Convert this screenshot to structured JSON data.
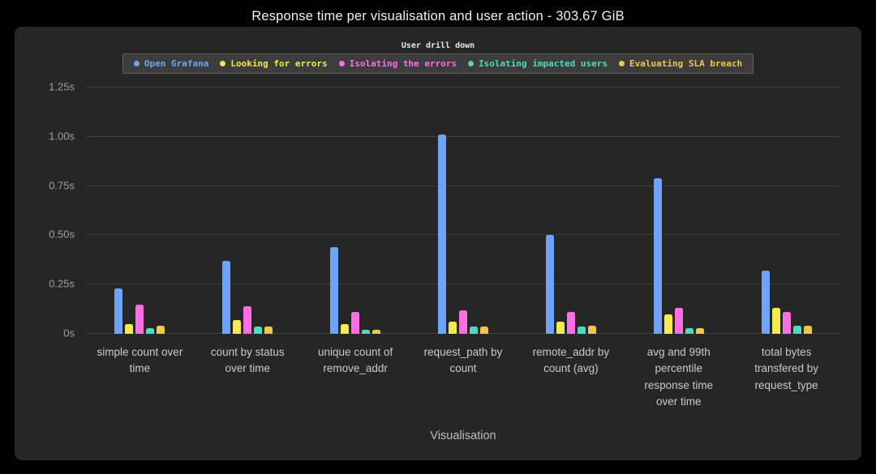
{
  "page": {
    "title": "Response time per visualisation and user action - 303.67 GiB"
  },
  "chart_data": {
    "type": "bar",
    "title": "Response time per visualisation and user action - 303.67 GiB",
    "xlabel": "Visualisation",
    "ylabel": "",
    "ylim": [
      0,
      1.25
    ],
    "grid": true,
    "legend_title": "User drill down",
    "legend_position": "top",
    "yticks": [
      {
        "label": "0s",
        "value": 0
      },
      {
        "label": "0.25s",
        "value": 0.25
      },
      {
        "label": "0.50s",
        "value": 0.5
      },
      {
        "label": "0.75s",
        "value": 0.75
      },
      {
        "label": "1.00s",
        "value": 1.0
      },
      {
        "label": "1.25s",
        "value": 1.25
      }
    ],
    "categories": [
      "simple count over time",
      "count by status over time",
      "unique count of remove_addr",
      "request_path by count",
      "remote_addr by count (avg)",
      "avg and 99th percentile response time over time",
      "total bytes transfered by request_type"
    ],
    "series": [
      {
        "name": "Open Grafana",
        "color": "#6ea3f9",
        "values": [
          0.23,
          0.37,
          0.44,
          1.01,
          0.5,
          0.79,
          0.32
        ]
      },
      {
        "name": "Looking for errors",
        "color": "#f2ea4e",
        "values": [
          0.05,
          0.07,
          0.05,
          0.06,
          0.06,
          0.1,
          0.13
        ]
      },
      {
        "name": "Isolating the errors",
        "color": "#fb6fe3",
        "values": [
          0.15,
          0.14,
          0.11,
          0.12,
          0.11,
          0.13,
          0.11
        ]
      },
      {
        "name": "Isolating impacted users",
        "color": "#4fd9c3",
        "values": [
          0.03,
          0.035,
          0.02,
          0.035,
          0.035,
          0.03,
          0.04
        ]
      },
      {
        "name": "Evaluating SLA breach",
        "color": "#eec74d",
        "values": [
          0.04,
          0.035,
          0.02,
          0.035,
          0.04,
          0.03,
          0.04
        ]
      }
    ]
  }
}
